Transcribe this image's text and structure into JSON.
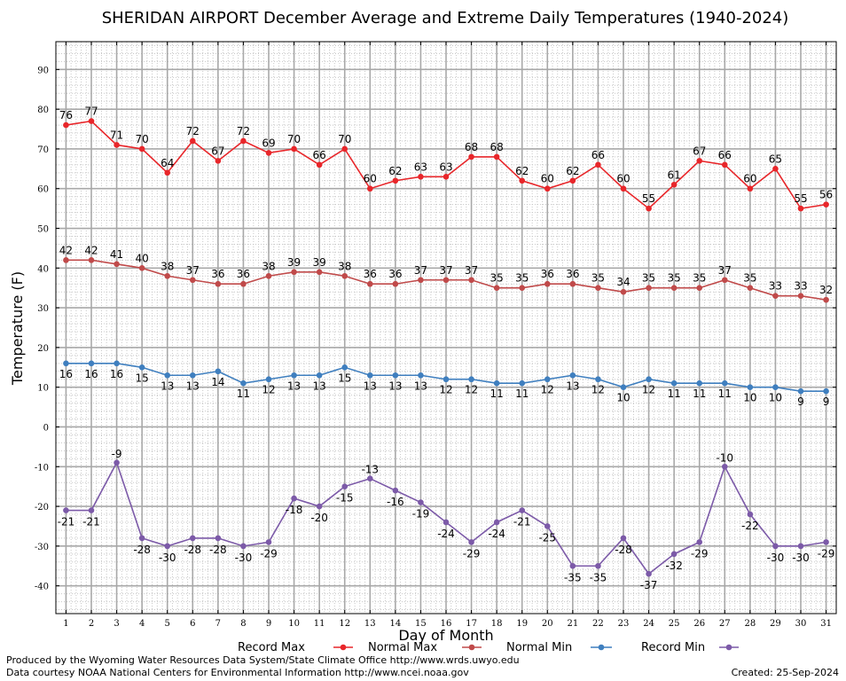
{
  "chart_data": {
    "type": "line",
    "title": "SHERIDAN AIRPORT December Average and Extreme Daily Temperatures (1940-2024)",
    "xlabel": "Day of Month",
    "ylabel": "Temperature (F)",
    "x": [
      1,
      2,
      3,
      4,
      5,
      6,
      7,
      8,
      9,
      10,
      11,
      12,
      13,
      14,
      15,
      16,
      17,
      18,
      19,
      20,
      21,
      22,
      23,
      24,
      25,
      26,
      27,
      28,
      29,
      30,
      31
    ],
    "xlim": [
      0.6,
      31.4
    ],
    "ylim": [
      -47,
      97
    ],
    "yticks": [
      -40,
      -30,
      -20,
      -10,
      0,
      10,
      20,
      30,
      40,
      50,
      60,
      70,
      80,
      90
    ],
    "grid": true,
    "legend_position": "bottom",
    "series": [
      {
        "name": "Record Max",
        "color": "#e8262a",
        "values": [
          76,
          77,
          71,
          70,
          64,
          72,
          67,
          72,
          69,
          70,
          66,
          70,
          60,
          62,
          63,
          63,
          68,
          68,
          62,
          60,
          62,
          66,
          60,
          55,
          61,
          67,
          66,
          60,
          65,
          55,
          56
        ]
      },
      {
        "name": "Normal Max",
        "color": "#c04a4a",
        "values": [
          42,
          42,
          41,
          40,
          38,
          37,
          36,
          36,
          38,
          39,
          39,
          38,
          36,
          36,
          37,
          37,
          37,
          35,
          35,
          36,
          36,
          35,
          34,
          35,
          35,
          35,
          37,
          35,
          33,
          33,
          32
        ]
      },
      {
        "name": "Normal Min",
        "color": "#3f7fbf",
        "values": [
          16,
          16,
          16,
          15,
          13,
          13,
          14,
          11,
          12,
          13,
          13,
          15,
          13,
          13,
          13,
          12,
          12,
          11,
          11,
          12,
          13,
          12,
          10,
          12,
          11,
          11,
          11,
          10,
          10,
          9,
          9
        ]
      },
      {
        "name": "Record Min",
        "color": "#7c5aa8",
        "values": [
          -21,
          -21,
          -9,
          -28,
          -30,
          -28,
          -28,
          -30,
          -29,
          -18,
          -20,
          -15,
          -13,
          -16,
          -19,
          -24,
          -29,
          -24,
          -21,
          -25,
          -35,
          -35,
          -28,
          -37,
          -32,
          -29,
          -10,
          -22,
          -30,
          -30,
          -29
        ]
      }
    ]
  },
  "footer": {
    "produced_by": "Produced by the Wyoming Water Resources Data System/State Climate Office http://www.wrds.uwyo.edu",
    "courtesy": "Data courtesy NOAA National Centers for Environmental Information http://www.ncei.noaa.gov",
    "created": "Created: 25-Sep-2024"
  }
}
